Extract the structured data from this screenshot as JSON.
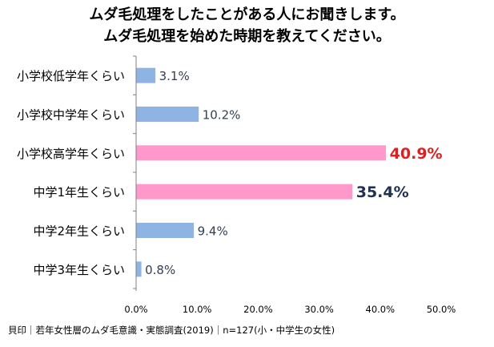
{
  "title_lines": [
    "ムダ毛処理をしたことがある人にお聞きします。",
    "ムダ毛処理を始めた時期を教えてください。"
  ],
  "source_note": "貝印｜若年女性層のムダ毛意識・実態調査(2019)｜n=127(小・中学生の女性)",
  "colors": {
    "bar_default": "#8EB4E3",
    "bar_highlight": "#FF99CC",
    "label_default": "#333F50",
    "label_top": "#E02020",
    "label_second": "#1F3050",
    "axis": "#808080"
  },
  "chart_data": {
    "type": "bar",
    "orientation": "horizontal",
    "categories": [
      "小学校低学年くらい",
      "小学校中学年くらい",
      "小学校高学年くらい",
      "中学1年生くらい",
      "中学2年生くらい",
      "中学3年生くらい"
    ],
    "values": [
      3.1,
      10.2,
      40.9,
      35.4,
      9.4,
      0.8
    ],
    "value_labels": [
      "3.1%",
      "10.2%",
      "40.9%",
      "35.4%",
      "9.4%",
      "0.8%"
    ],
    "highlighted": [
      false,
      false,
      true,
      true,
      false,
      false
    ],
    "label_style": [
      "normal",
      "normal",
      "top",
      "second",
      "normal",
      "normal"
    ],
    "xlim": [
      0,
      50
    ],
    "xticks": [
      0,
      10,
      20,
      30,
      40,
      50
    ],
    "xtick_labels": [
      "0.0%",
      "10.0%",
      "20.0%",
      "30.0%",
      "40.0%",
      "50.0%"
    ],
    "grid": false,
    "legend": "none"
  }
}
